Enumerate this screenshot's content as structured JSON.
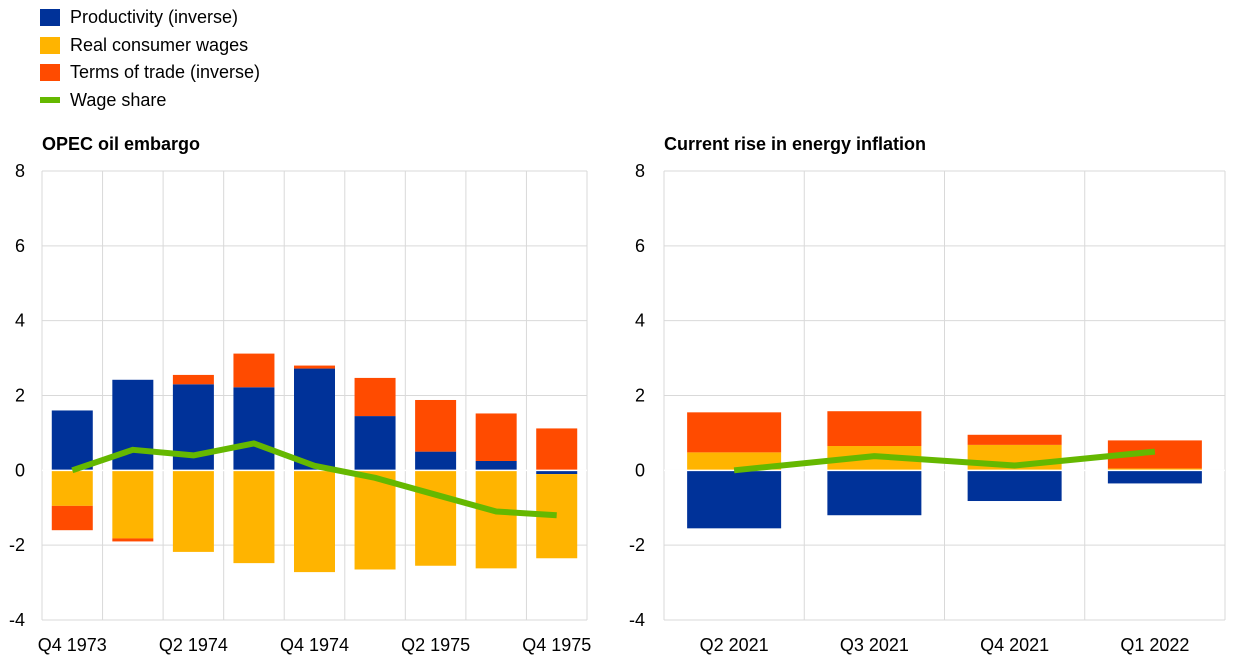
{
  "legend": [
    {
      "label": "Productivity (inverse)",
      "color": "#003299",
      "kind": "bar"
    },
    {
      "label": "Real consumer wages",
      "color": "#FFB400",
      "kind": "bar"
    },
    {
      "label": "Terms of trade (inverse)",
      "color": "#FF4B00",
      "kind": "bar"
    },
    {
      "label": "Wage share",
      "color": "#65B800",
      "kind": "line"
    }
  ],
  "chart_data": [
    {
      "type": "bar",
      "stacked": true,
      "title": "OPEC oil embargo",
      "categories": [
        "Q4 1973",
        "Q1 1974",
        "Q2 1974",
        "Q3 1974",
        "Q4 1974",
        "Q1 1975",
        "Q2 1975",
        "Q3 1975",
        "Q4 1975"
      ],
      "tick_labels": [
        "Q4 1973",
        "Q2 1974",
        "Q4 1974",
        "Q2 1975",
        "Q4 1975"
      ],
      "ylim": [
        -4,
        8
      ],
      "yticks": [
        -4,
        -2,
        0,
        2,
        4,
        6,
        8
      ],
      "grid": true,
      "series": [
        {
          "name": "Productivity (inverse)",
          "values": [
            1.6,
            2.42,
            2.3,
            2.22,
            2.72,
            1.45,
            0.5,
            0.25,
            -0.1
          ]
        },
        {
          "name": "Real consumer wages",
          "values": [
            -0.95,
            -1.82,
            -2.18,
            -2.48,
            -2.72,
            -2.65,
            -2.55,
            -2.62,
            -2.25
          ]
        },
        {
          "name": "Terms of trade (inverse)",
          "values": [
            -0.65,
            -0.08,
            0.25,
            0.9,
            0.08,
            1.02,
            1.38,
            1.27,
            1.12
          ]
        }
      ],
      "line": {
        "name": "Wage share",
        "values": [
          0.0,
          0.55,
          0.4,
          0.72,
          0.12,
          -0.2,
          -0.65,
          -1.1,
          -1.2
        ]
      }
    },
    {
      "type": "bar",
      "stacked": true,
      "title": "Current rise in energy inflation",
      "categories": [
        "Q2 2021",
        "Q3 2021",
        "Q4 2021",
        "Q1 2022"
      ],
      "tick_labels": [
        "Q2 2021",
        "Q3 2021",
        "Q4 2021",
        "Q1 2022"
      ],
      "ylim": [
        -4,
        8
      ],
      "yticks": [
        -4,
        -2,
        0,
        2,
        4,
        6,
        8
      ],
      "grid": true,
      "series": [
        {
          "name": "Productivity (inverse)",
          "values": [
            -1.55,
            -1.2,
            -0.82,
            -0.35
          ]
        },
        {
          "name": "Real consumer wages",
          "values": [
            0.48,
            0.65,
            0.68,
            0.05
          ]
        },
        {
          "name": "Terms of trade (inverse)",
          "values": [
            1.07,
            0.93,
            0.27,
            0.75
          ]
        }
      ],
      "line": {
        "name": "Wage share",
        "values": [
          0.0,
          0.38,
          0.13,
          0.5
        ]
      }
    }
  ]
}
